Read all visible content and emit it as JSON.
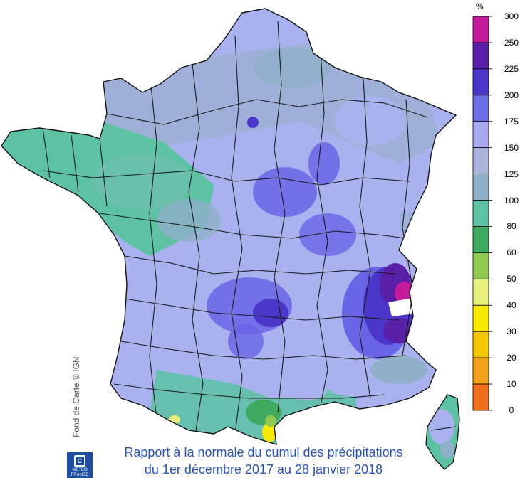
{
  "title": {
    "line1": "Rapport à la normale du cumul des précipitations",
    "line2": "du 1er décembre 2017 au 28 janvier 2018"
  },
  "credit": "Fond de Carte © IGN",
  "logo": {
    "line1": "METEO",
    "line2": "FRANCE"
  },
  "legend": {
    "unit": "%",
    "ticks": [
      "300",
      "250",
      "225",
      "200",
      "175",
      "150",
      "125",
      "100",
      "80",
      "60",
      "50",
      "40",
      "30",
      "20",
      "10",
      "0"
    ],
    "colors": [
      "#c21a9a",
      "#5a1fa7",
      "#4a36c9",
      "#6c6ee6",
      "#a9a9f2",
      "#a8b4dc",
      "#8fb0c8",
      "#5cc2a3",
      "#3fa960",
      "#90c850",
      "#e7f07c",
      "#f6ea00",
      "#f4c800",
      "#f0a21a",
      "#ef6f1a"
    ]
  },
  "map_colors": {
    "light_periwinkle": "#a9b2ee",
    "slate": "#9fb0d8",
    "teal_green": "#5cc2a3",
    "blue_violet": "#6a64e6",
    "purple": "#5a1fa7",
    "magenta": "#c21a9a",
    "yellow": "#f6ea00"
  }
}
